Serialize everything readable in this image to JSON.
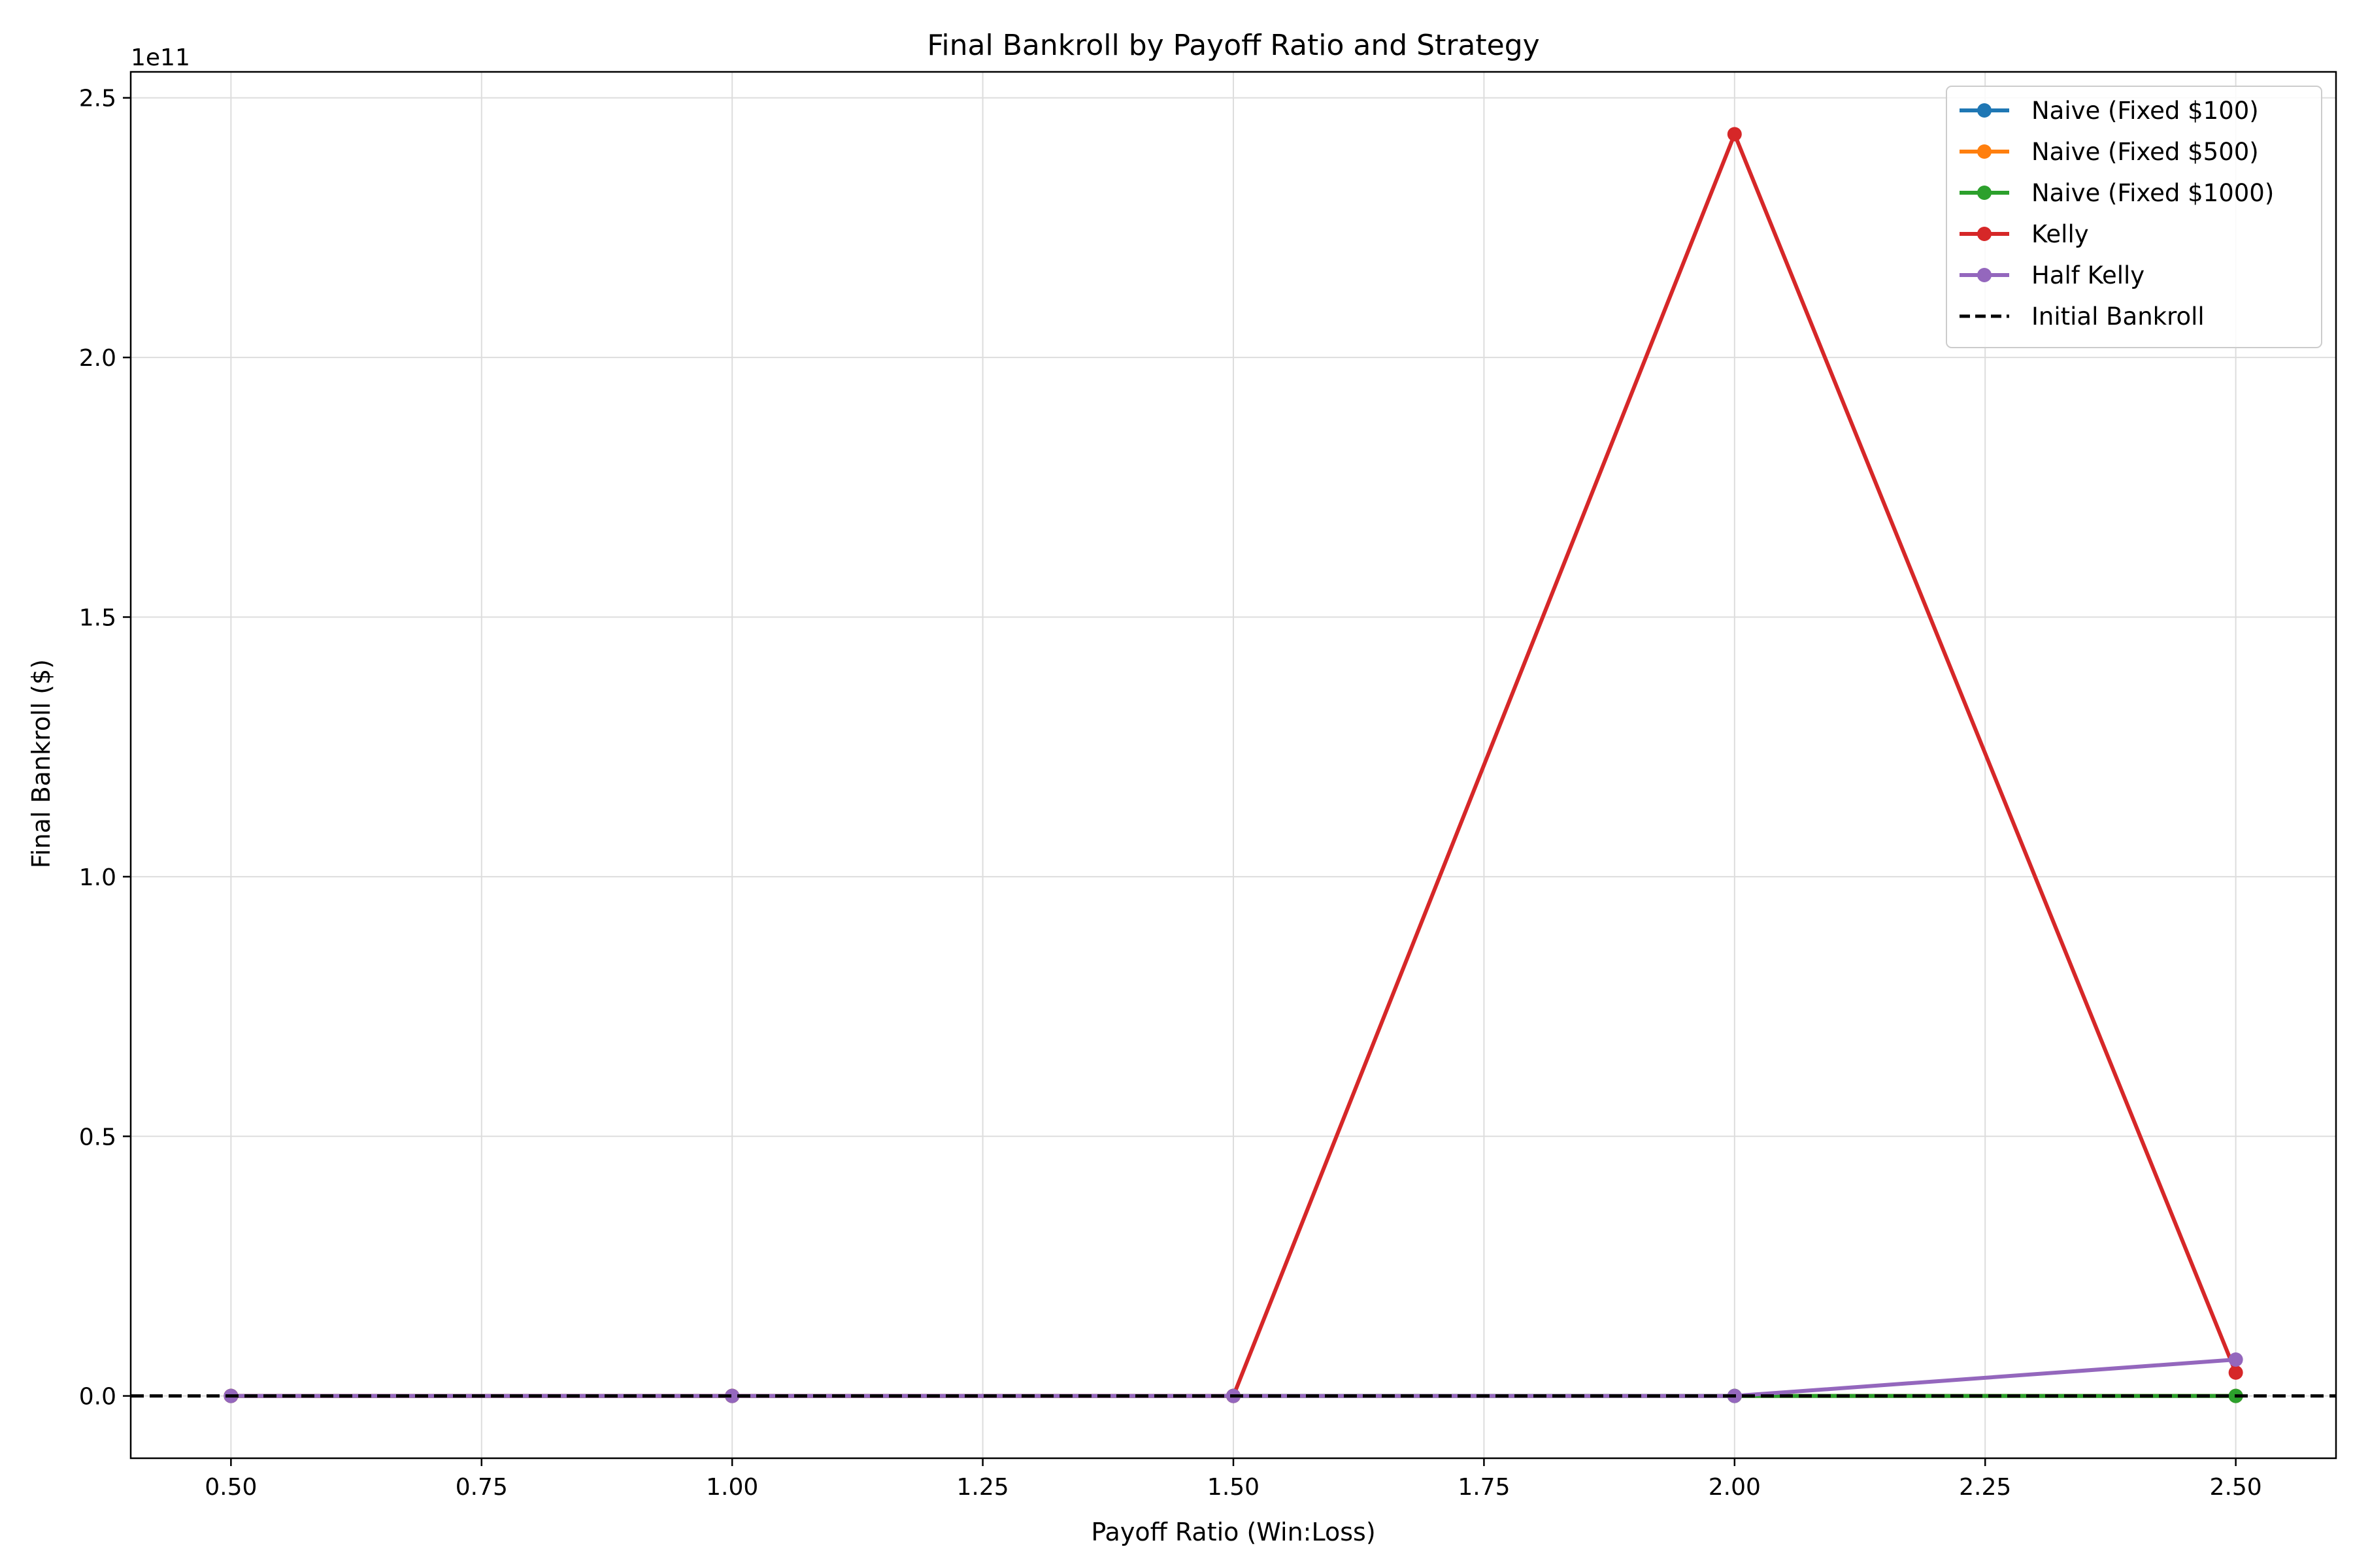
{
  "chart_data": {
    "type": "line",
    "title": "Final Bankroll by Payoff Ratio and Strategy",
    "xlabel": "Payoff Ratio (Win:Loss)",
    "ylabel": "Final Bankroll ($)",
    "y_offset_text": "1e11",
    "x": [
      0.5,
      1.0,
      1.5,
      2.0,
      2.5
    ],
    "xlim": [
      0.4,
      2.6
    ],
    "ylim": [
      -12000000000.0,
      255000000000.0
    ],
    "x_ticks": [
      0.5,
      0.75,
      1.0,
      1.25,
      1.5,
      1.75,
      2.0,
      2.25,
      2.5
    ],
    "x_tick_labels": [
      "0.50",
      "0.75",
      "1.00",
      "1.25",
      "1.50",
      "1.75",
      "2.00",
      "2.25",
      "2.50"
    ],
    "y_ticks": [
      0,
      50000000000.0,
      100000000000.0,
      150000000000.0,
      200000000000.0,
      250000000000.0
    ],
    "y_tick_labels": [
      "0.0",
      "0.5",
      "1.0",
      "1.5",
      "2.0",
      "2.5"
    ],
    "grid": true,
    "legend_position": "top-right",
    "series": [
      {
        "name": "Naive (Fixed $100)",
        "color": "#1f77b4",
        "values": [
          0,
          0,
          0,
          0,
          0
        ]
      },
      {
        "name": "Naive (Fixed $500)",
        "color": "#ff7f0e",
        "values": [
          0,
          0,
          0,
          0,
          0
        ]
      },
      {
        "name": "Naive (Fixed $1000)",
        "color": "#2ca02c",
        "values": [
          0,
          0,
          0,
          0,
          0
        ]
      },
      {
        "name": "Kelly",
        "color": "#d62728",
        "values": [
          0,
          0,
          0,
          243000000000.0,
          4500000000.0
        ]
      },
      {
        "name": "Half Kelly",
        "color": "#9467bd",
        "values": [
          0,
          0,
          0,
          0,
          7000000000.0
        ]
      }
    ],
    "reference_line": {
      "name": "Initial Bankroll",
      "color": "#000000",
      "value": 10000,
      "style": "dashed"
    }
  }
}
